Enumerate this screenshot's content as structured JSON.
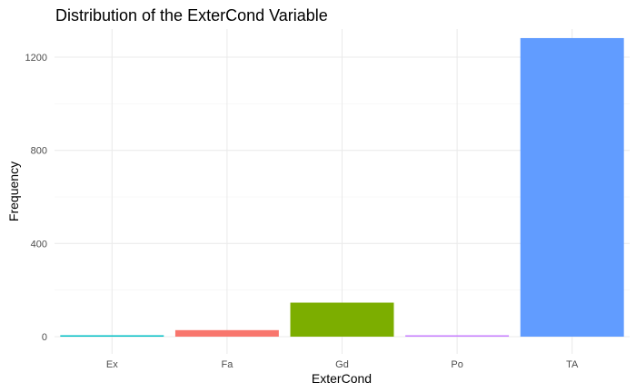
{
  "chart_data": {
    "type": "bar",
    "title": "Distribution of the ExterCond Variable",
    "xlabel": "ExterCond",
    "ylabel": "Frequency",
    "categories": [
      "Ex",
      "Fa",
      "Gd",
      "Po",
      "TA"
    ],
    "values": [
      3,
      28,
      146,
      1,
      1282
    ],
    "colors": [
      "#00BFC4",
      "#F8766D",
      "#7CAE00",
      "#C77CFF",
      "#619CFF"
    ],
    "ylim": [
      0,
      1330
    ],
    "yticks": [
      0,
      400,
      800,
      1200
    ],
    "grid": true,
    "legend": "none"
  }
}
